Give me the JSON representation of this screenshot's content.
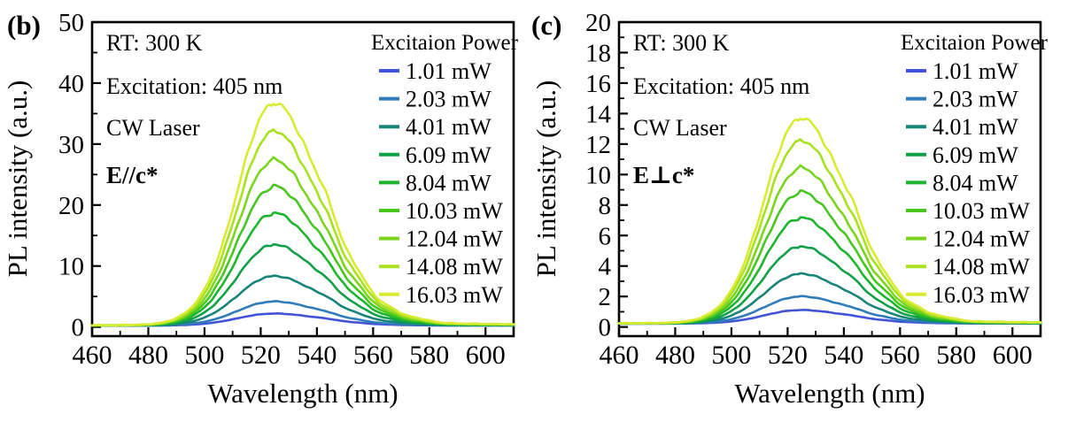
{
  "figure": {
    "background": "#ffffff"
  },
  "chart_data": [
    {
      "panel": "(b)",
      "type": "line",
      "annotations": {
        "rt": "RT:  300 K",
        "excitation": "Excitation: 405 nm",
        "laser": "CW Laser"
      },
      "polarization": {
        "text": "E//c*",
        "color": "#1b76d2"
      },
      "xlabel": "Wavelength (nm)",
      "ylabel": "PL intensity (a.u.)",
      "xlim": [
        460,
        610
      ],
      "ylim": [
        0,
        50
      ],
      "x_major_ticks": [
        460,
        480,
        500,
        520,
        540,
        560,
        580,
        600
      ],
      "x_minor_step": 10,
      "y_major_ticks": [
        0,
        10,
        20,
        30,
        40,
        50
      ],
      "y_minor_step": 5,
      "peak_wavelength_nm": 524,
      "legend": {
        "title": "Excitaion Power"
      },
      "series": [
        {
          "name": "1.01 mW",
          "color": "#4353d6",
          "peak_intensity": 2.0
        },
        {
          "name": "2.03 mW",
          "color": "#2e7cba",
          "peak_intensity": 4.0
        },
        {
          "name": "4.01 mW",
          "color": "#178578",
          "peak_intensity": 8.2
        },
        {
          "name": "6.09 mW",
          "color": "#10a047",
          "peak_intensity": 13.4
        },
        {
          "name": "8.04 mW",
          "color": "#1cb52d",
          "peak_intensity": 18.6
        },
        {
          "name": "10.03 mW",
          "color": "#47c620",
          "peak_intensity": 23.0
        },
        {
          "name": "12.04 mW",
          "color": "#7bd51d",
          "peak_intensity": 27.4
        },
        {
          "name": "14.08 mW",
          "color": "#a9e120",
          "peak_intensity": 32.2
        },
        {
          "name": "16.03 mW",
          "color": "#d8eb32",
          "peak_intensity": 36.8
        }
      ]
    },
    {
      "panel": "(c)",
      "type": "line",
      "annotations": {
        "rt": "RT:  300 K",
        "excitation": "Excitation: 405 nm",
        "laser": "CW Laser"
      },
      "polarization": {
        "text": "E⊥c*",
        "color": "#2aa32c"
      },
      "xlabel": "Wavelength (nm)",
      "ylabel": "PL intensity (a.u.)",
      "xlim": [
        460,
        610
      ],
      "ylim": [
        0,
        20
      ],
      "x_major_ticks": [
        460,
        480,
        500,
        520,
        540,
        560,
        580,
        600
      ],
      "x_minor_step": 10,
      "y_major_ticks": [
        0,
        2,
        4,
        6,
        8,
        10,
        12,
        14,
        16,
        18,
        20
      ],
      "y_minor_step": 1,
      "peak_wavelength_nm": 524,
      "legend": {
        "title": "Excitaion Power"
      },
      "series": [
        {
          "name": "1.01 mW",
          "color": "#4353d6",
          "peak_intensity": 0.9
        },
        {
          "name": "2.03 mW",
          "color": "#2e7cba",
          "peak_intensity": 1.8
        },
        {
          "name": "4.01 mW",
          "color": "#178578",
          "peak_intensity": 3.3
        },
        {
          "name": "6.09 mW",
          "color": "#10a047",
          "peak_intensity": 5.1
        },
        {
          "name": "8.04 mW",
          "color": "#1cb52d",
          "peak_intensity": 7.0
        },
        {
          "name": "10.03 mW",
          "color": "#47c620",
          "peak_intensity": 8.7
        },
        {
          "name": "12.04 mW",
          "color": "#7bd51d",
          "peak_intensity": 10.3
        },
        {
          "name": "14.08 mW",
          "color": "#a9e120",
          "peak_intensity": 12.1
        },
        {
          "name": "16.03 mW",
          "color": "#d8eb32",
          "peak_intensity": 13.6
        }
      ]
    }
  ]
}
